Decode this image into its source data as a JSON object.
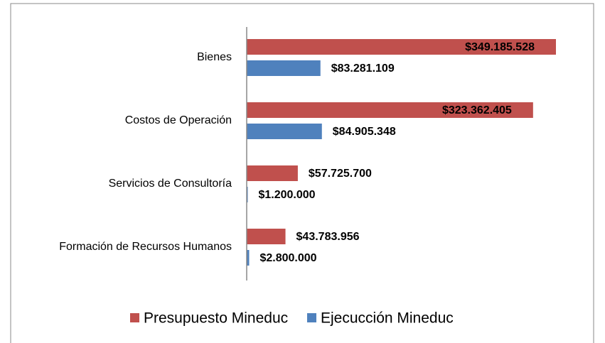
{
  "chart_data": {
    "type": "hbar",
    "categories": [
      "Bienes",
      "Costos de Operación",
      "Servicios de Consultoría",
      "Formación de Recursos Humanos"
    ],
    "series": [
      {
        "name": "Presupuesto Mineduc",
        "color": "#c0504d",
        "values": [
          349185528,
          323362405,
          57725700,
          43783956
        ],
        "value_labels": [
          "$349.185.528",
          "$323.362.405",
          "$57.725.700",
          "$43.783.956"
        ]
      },
      {
        "name": "Ejecucción Mineduc",
        "color": "#4f81bd",
        "values": [
          83281109,
          84905348,
          1200000,
          2800000
        ],
        "value_labels": [
          "$83.281.109",
          "$84.905.348",
          "$1.200.000",
          "$2.800.000"
        ]
      }
    ],
    "legend": "bottom"
  }
}
